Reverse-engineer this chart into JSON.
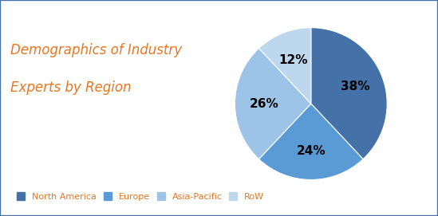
{
  "title_line1": "Demographics of Industry",
  "title_line2": "Experts by Region",
  "title_color": "#E87722",
  "slices": [
    38,
    24,
    26,
    12
  ],
  "pct_labels": [
    "38%",
    "24%",
    "26%",
    "12%"
  ],
  "colors": [
    "#4472A8",
    "#5B9BD5",
    "#9DC3E6",
    "#BDD7EE"
  ],
  "legend_labels": [
    "North America",
    "Europe",
    "Asia-Pacific",
    "RoW"
  ],
  "legend_text_color": "#E87722",
  "background_color": "#FFFFFF",
  "border_color": "#4472A8",
  "startangle": 90,
  "figsize": [
    5.49,
    2.71
  ]
}
